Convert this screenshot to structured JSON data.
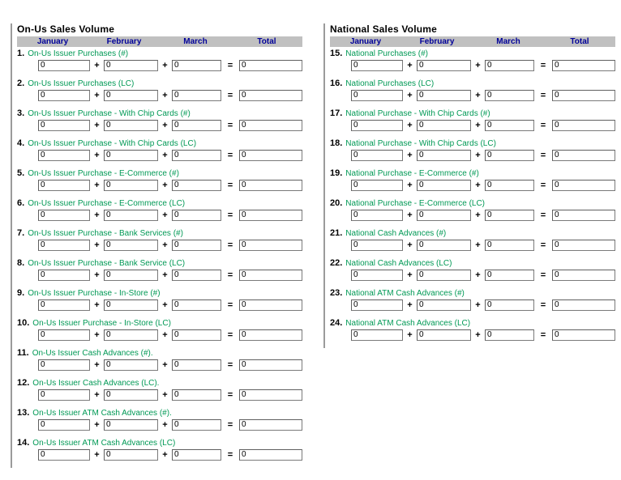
{
  "colors": {
    "header_bar_bg": "#c0c0c0",
    "month_label_text": "#000099",
    "row_label_text": "#009955",
    "divider_line": "#9b9b9b",
    "input_border": "#7a7a7a"
  },
  "ops": {
    "plus": "+",
    "equals": "="
  },
  "sections": {
    "on_us": {
      "title": "On-Us Sales Volume",
      "columns": [
        "January",
        "February",
        "March",
        "Total"
      ],
      "rows": [
        {
          "number": "1.",
          "label": "On-Us Issuer Purchases (#)",
          "values": [
            "0",
            "0",
            "0",
            "0"
          ]
        },
        {
          "number": "2.",
          "label": "On-Us Issuer Purchases (LC)",
          "values": [
            "0",
            "0",
            "0",
            "0"
          ]
        },
        {
          "number": "3.",
          "label": "On-Us Issuer Purchase - With Chip Cards (#)",
          "values": [
            "0",
            "0",
            "0",
            "0"
          ]
        },
        {
          "number": "4.",
          "label": "On-Us Issuer Purchase - With Chip Cards (LC)",
          "values": [
            "0",
            "0",
            "0",
            "0"
          ]
        },
        {
          "number": "5.",
          "label": "On-Us Issuer Purchase - E-Commerce (#)",
          "values": [
            "0",
            "0",
            "0",
            "0"
          ]
        },
        {
          "number": "6.",
          "label": "On-Us Issuer Purchase - E-Commerce (LC)",
          "values": [
            "0",
            "0",
            "0",
            "0"
          ]
        },
        {
          "number": "7.",
          "label": "On-Us Issuer Purchase - Bank Services (#)",
          "values": [
            "0",
            "0",
            "0",
            "0"
          ]
        },
        {
          "number": "8.",
          "label": "On-Us Issuer Purchase - Bank Service (LC)",
          "values": [
            "0",
            "0",
            "0",
            "0"
          ]
        },
        {
          "number": "9.",
          "label": "On-Us Issuer Purchase - In-Store (#)",
          "values": [
            "0",
            "0",
            "0",
            "0"
          ]
        },
        {
          "number": "10.",
          "label": "On-Us Issuer Purchase - In-Store (LC)",
          "values": [
            "0",
            "0",
            "0",
            "0"
          ]
        },
        {
          "number": "11.",
          "label": "On-Us Issuer Cash Advances (#).",
          "values": [
            "0",
            "0",
            "0",
            "0"
          ]
        },
        {
          "number": "12.",
          "label": "On-Us Issuer Cash Advances (LC).",
          "values": [
            "0",
            "0",
            "0",
            "0"
          ]
        },
        {
          "number": "13.",
          "label": "On-Us Issuer ATM Cash Advances (#).",
          "values": [
            "0",
            "0",
            "0",
            "0"
          ]
        },
        {
          "number": "14.",
          "label": "On-Us Issuer ATM Cash Advances (LC)",
          "values": [
            "0",
            "0",
            "0",
            "0"
          ]
        }
      ]
    },
    "national": {
      "title": "National Sales Volume",
      "columns": [
        "January",
        "February",
        "March",
        "Total"
      ],
      "rows": [
        {
          "number": "15.",
          "label": "National Purchases (#)",
          "values": [
            "0",
            "0",
            "0",
            "0"
          ]
        },
        {
          "number": "16.",
          "label": "National Purchases (LC)",
          "values": [
            "0",
            "0",
            "0",
            "0"
          ]
        },
        {
          "number": "17.",
          "label": "National Purchase - With Chip Cards (#)",
          "values": [
            "0",
            "0",
            "0",
            "0"
          ]
        },
        {
          "number": "18.",
          "label": "National Purchase - With Chip Cards (LC)",
          "values": [
            "0",
            "0",
            "0",
            "0"
          ]
        },
        {
          "number": "19.",
          "label": "National Purchase - E-Commerce (#)",
          "values": [
            "0",
            "0",
            "0",
            "0"
          ]
        },
        {
          "number": "20.",
          "label": "National Purchase - E-Commerce (LC)",
          "values": [
            "0",
            "0",
            "0",
            "0"
          ]
        },
        {
          "number": "21.",
          "label": "National Cash Advances (#)",
          "values": [
            "0",
            "0",
            "0",
            "0"
          ]
        },
        {
          "number": "22.",
          "label": "National Cash Advances (LC)",
          "values": [
            "0",
            "0",
            "0",
            "0"
          ]
        },
        {
          "number": "23.",
          "label": "National ATM Cash Advances (#)",
          "values": [
            "0",
            "0",
            "0",
            "0"
          ]
        },
        {
          "number": "24.",
          "label": "National ATM Cash Advances (LC)",
          "values": [
            "0",
            "0",
            "0",
            "0"
          ]
        }
      ]
    }
  }
}
